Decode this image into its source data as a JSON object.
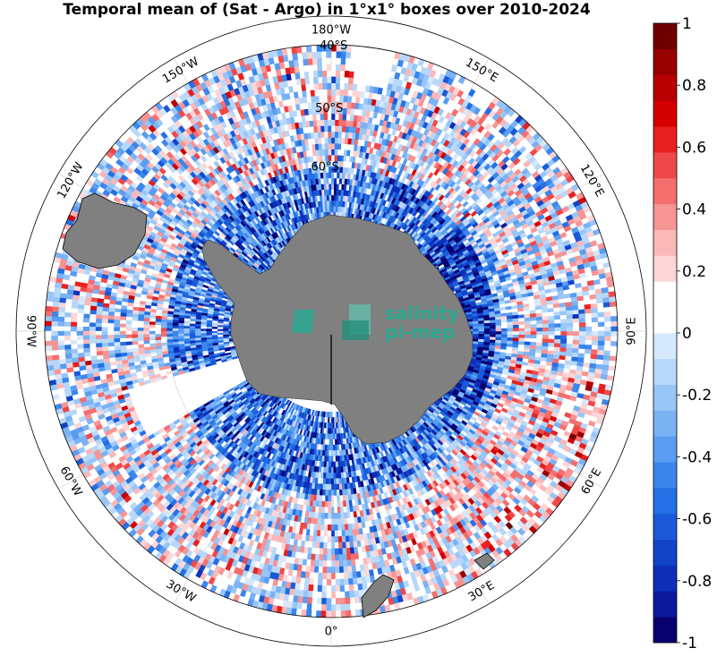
{
  "title": "Temporal mean of (Sat - Argo) in 1°x1° boxes over 2010-2024",
  "map": {
    "projection": "south polar stereographic",
    "field": "Sat - Argo",
    "data_latitude_range": [
      -75,
      -40
    ],
    "longitude_labels": [
      {
        "lon": 0,
        "text": "0°"
      },
      {
        "lon": 30,
        "text": "30°E"
      },
      {
        "lon": 60,
        "text": "60°E"
      },
      {
        "lon": 90,
        "text": "90°E"
      },
      {
        "lon": 120,
        "text": "120°E"
      },
      {
        "lon": 150,
        "text": "150°E"
      },
      {
        "lon": 180,
        "text": "180°W"
      },
      {
        "lon": -150,
        "text": "150°W"
      },
      {
        "lon": -120,
        "text": "120°W"
      },
      {
        "lon": -90,
        "text": "90°W"
      },
      {
        "lon": -60,
        "text": "60°W"
      },
      {
        "lon": -30,
        "text": "30°W"
      }
    ],
    "latitude_labels": [
      {
        "lat": -60,
        "text": "60°S"
      },
      {
        "lat": -50,
        "text": "50°S"
      },
      {
        "lat": -40,
        "text": "40°S"
      }
    ],
    "land_color": "#808080",
    "watermark": {
      "line1": "salinity",
      "line2": "pi-mep",
      "color": "#2aa890"
    }
  },
  "colorbar": {
    "range": [
      -1,
      1
    ],
    "levels": 24,
    "tick_labels": [
      "1",
      "0.8",
      "0.6",
      "0.4",
      "0.2",
      "0",
      "-0.2",
      "-0.4",
      "-0.6",
      "-0.8",
      "-1"
    ],
    "colors": [
      "#08006e",
      "#0a1a9a",
      "#0d2fb8",
      "#1244c8",
      "#1a5ad8",
      "#2470e4",
      "#3a86ec",
      "#5a9cf0",
      "#7ab2f4",
      "#98c6f7",
      "#b8d8fa",
      "#d6e8fc",
      "#ffffff",
      "#ffffff",
      "#fcd6d6",
      "#fab8b8",
      "#f79494",
      "#f46e6e",
      "#f04848",
      "#e82020",
      "#d40000",
      "#b80000",
      "#960000",
      "#6e0000"
    ]
  }
}
